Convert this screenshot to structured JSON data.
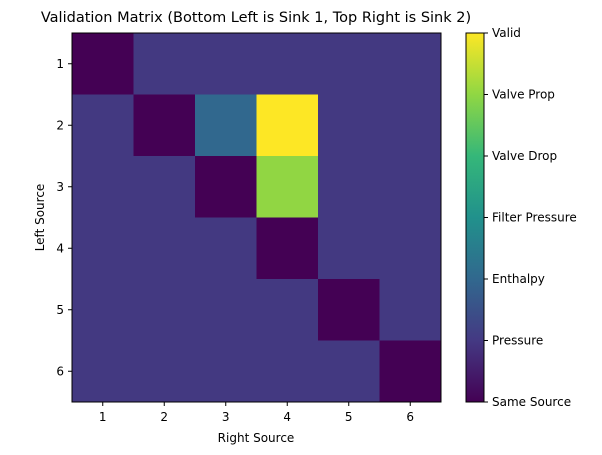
{
  "chart_data": {
    "type": "heatmap",
    "title": "Validation Matrix (Bottom Left is Sink 1, Top Right is Sink 2)",
    "xlabel": "Right Source",
    "ylabel": "Left Source",
    "x_ticks": [
      "1",
      "2",
      "3",
      "4",
      "5",
      "6"
    ],
    "y_ticks": [
      "1",
      "2",
      "3",
      "4",
      "5",
      "6"
    ],
    "values": [
      [
        0,
        1,
        1,
        1,
        1,
        1
      ],
      [
        1,
        0,
        2,
        6,
        1,
        1
      ],
      [
        1,
        1,
        0,
        5,
        1,
        1
      ],
      [
        1,
        1,
        1,
        0,
        1,
        1
      ],
      [
        1,
        1,
        1,
        1,
        0,
        1
      ],
      [
        1,
        1,
        1,
        1,
        1,
        0
      ]
    ],
    "colorbar": {
      "range": [
        0,
        6
      ],
      "levels": [
        "Same Source",
        "Pressure",
        "Enthalpy",
        "Filter Pressure",
        "Valve Drop",
        "Valve Prop",
        "Valid"
      ]
    },
    "colormap": "viridis",
    "grid": false
  }
}
